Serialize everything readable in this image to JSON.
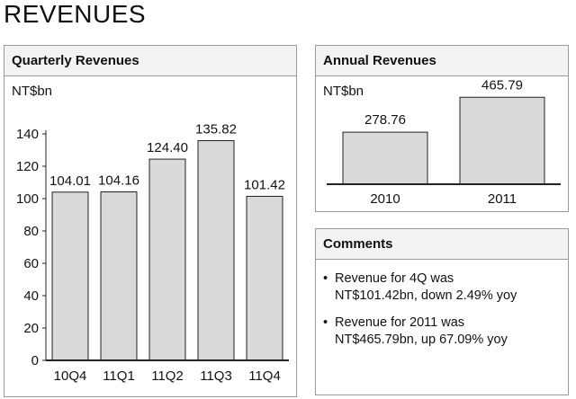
{
  "page": {
    "title": "REVENUES"
  },
  "quarterly": {
    "title": "Quarterly Revenues",
    "unit": "NT$bn"
  },
  "annual": {
    "title": "Annual Revenues",
    "unit": "NT$bn"
  },
  "comments": {
    "title": "Comments",
    "items": [
      {
        "line1": "Revenue for 4Q was",
        "line2": "NT$101.42bn, down 2.49% yoy"
      },
      {
        "line1": "Revenue for 2011 was",
        "line2": "NT$465.79bn, up 67.09% yoy"
      }
    ]
  },
  "chart_data": [
    {
      "type": "bar",
      "title": "Quarterly Revenues",
      "ylabel": "NT$bn",
      "categories": [
        "10Q4",
        "11Q1",
        "11Q2",
        "11Q3",
        "11Q4"
      ],
      "values": [
        104.01,
        104.16,
        124.4,
        135.82,
        101.42
      ],
      "value_labels": [
        "104.01",
        "104.16",
        "124.40",
        "135.82",
        "101.42"
      ],
      "ylim": [
        0,
        140
      ],
      "yticks": [
        0,
        20,
        40,
        60,
        80,
        100,
        120,
        140
      ],
      "grid": false,
      "colors": {
        "bar": "#d9d9d9",
        "edge": "#222222"
      }
    },
    {
      "type": "bar",
      "title": "Annual Revenues",
      "ylabel": "NT$bn",
      "categories": [
        "2010",
        "2011"
      ],
      "values": [
        278.76,
        465.79
      ],
      "value_labels": [
        "278.76",
        "465.79"
      ],
      "ylim": [
        0,
        520
      ],
      "grid": false,
      "colors": {
        "bar": "#d9d9d9",
        "edge": "#222222"
      }
    }
  ]
}
